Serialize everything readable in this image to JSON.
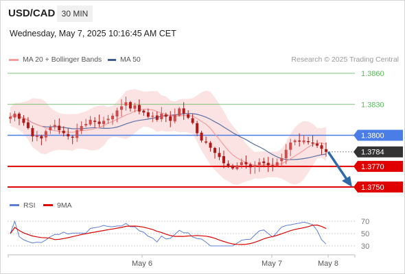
{
  "header": {
    "pair": "USD/CAD",
    "timeframe": "30 MIN",
    "datetime": "Wednesday, May 7, 2025 10:16:45 AM CET"
  },
  "legend": {
    "bb_label": "MA 20 + Bollinger Bands",
    "ma50_label": "MA 50",
    "credit": "Research © 2025 Trading Central",
    "rsi_label": "RSI",
    "rsi_ma_label": "9MA"
  },
  "colors": {
    "bollinger": "#f29c9c",
    "band_fill": "#fbd9d9",
    "ma50": "#3d5a99",
    "resistance_green": "#5cb85c",
    "support_red": "#e00000",
    "pivot_blue": "#4a7de6",
    "current_dark": "#333333",
    "candle_up": "#d24a4a",
    "candle_down": "#b21a1a",
    "arrow": "#2f6aa8",
    "rsi": "#5b7fd6",
    "rsi_ma": "#e00000"
  },
  "chart_data": {
    "type": "candlestick",
    "price_levels": [
      {
        "value": 1.386,
        "label": "1.3860",
        "style": "green-text"
      },
      {
        "value": 1.383,
        "label": "1.3830",
        "style": "green-text"
      },
      {
        "value": 1.38,
        "label": "1.3800",
        "style": "blue-box"
      },
      {
        "value": 1.3784,
        "label": "1.3784",
        "style": "dark-box-current"
      },
      {
        "value": 1.377,
        "label": "1.3770",
        "style": "red-box"
      },
      {
        "value": 1.375,
        "label": "1.3750",
        "style": "red-box"
      }
    ],
    "x_labels": [
      "May 6",
      "May 7",
      "May 8"
    ],
    "rsi_ticks": [
      70,
      50,
      30
    ],
    "price_range": [
      1.3745,
      1.3865
    ],
    "close_series": [
      1.3818,
      1.3821,
      1.3816,
      1.3812,
      1.3807,
      1.3799,
      1.38,
      1.3797,
      1.3804,
      1.3808,
      1.381,
      1.3805,
      1.3802,
      1.3799,
      1.3798,
      1.3805,
      1.3809,
      1.3811,
      1.3815,
      1.3813,
      1.3811,
      1.3814,
      1.3816,
      1.3819,
      1.3824,
      1.3828,
      1.3832,
      1.3826,
      1.3829,
      1.3823,
      1.3822,
      1.3818,
      1.3819,
      1.3815,
      1.3821,
      1.3818,
      1.3814,
      1.382,
      1.3826,
      1.3821,
      1.3817,
      1.3812,
      1.3802,
      1.3795,
      1.3793,
      1.3788,
      1.3783,
      1.3779,
      1.3773,
      1.377,
      1.3768,
      1.3771,
      1.3774,
      1.3772,
      1.3769,
      1.3771,
      1.3774,
      1.3773,
      1.3771,
      1.377,
      1.3774,
      1.3778,
      1.3786,
      1.3793,
      1.3795,
      1.3794,
      1.3795,
      1.3794,
      1.3793,
      1.379,
      1.3787,
      1.3784
    ]
  }
}
